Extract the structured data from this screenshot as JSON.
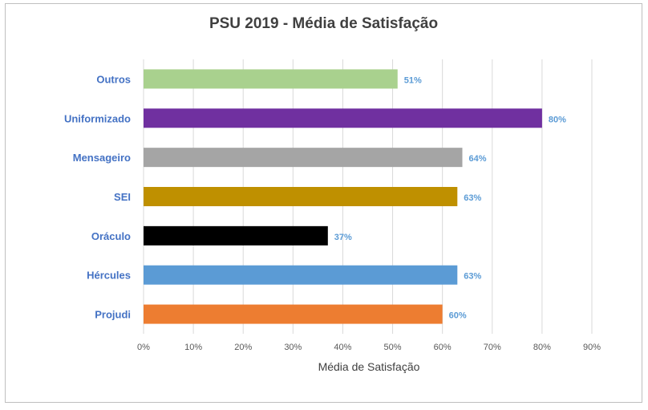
{
  "chart_data": {
    "type": "bar",
    "orientation": "horizontal",
    "title": "PSU 2019 - Média de Satisfação",
    "xlabel": "Média de Satisfação",
    "ylabel": "",
    "xlim": [
      0,
      90
    ],
    "x_ticks": [
      "0%",
      "10%",
      "20%",
      "30%",
      "40%",
      "50%",
      "60%",
      "70%",
      "80%",
      "90%"
    ],
    "grid": true,
    "categories": [
      "Outros",
      "Uniformizado",
      "Mensageiro",
      "SEI",
      "Oráculo",
      "Hércules",
      "Projudi"
    ],
    "values": [
      51,
      80,
      64,
      63,
      37,
      63,
      60
    ],
    "data_labels": [
      "51%",
      "80%",
      "64%",
      "63%",
      "37%",
      "63%",
      "60%"
    ],
    "bar_colors": [
      "#a9d18e",
      "#7030a0",
      "#a5a5a5",
      "#bf9000",
      "#000000",
      "#5b9bd5",
      "#ed7d31"
    ],
    "label_color": "#4472c4",
    "data_label_color": "#5b9bd5"
  }
}
